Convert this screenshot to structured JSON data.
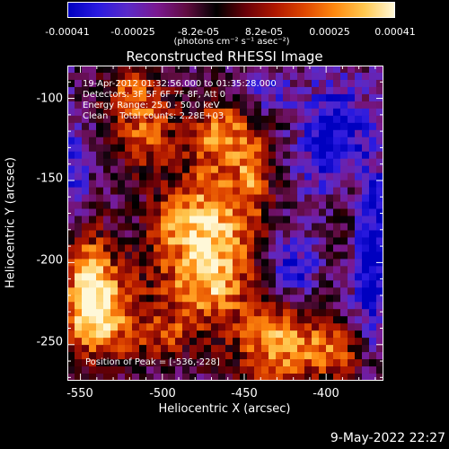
{
  "chart_data": {
    "type": "heatmap",
    "title": "Reconstructed RHESSI Image",
    "xlabel": "Heliocentric X (arcsec)",
    "ylabel": "Heliocentric Y (arcsec)",
    "xlim": [
      -558,
      -365
    ],
    "ylim": [
      -272,
      -80
    ],
    "x_ticks": [
      -550,
      -500,
      -450,
      -400
    ],
    "y_ticks": [
      -100,
      -150,
      -200,
      -250
    ],
    "colorbar": {
      "ticks": [
        "-0.00041",
        "-0.00025",
        "-8.2e-05",
        "8.2e-05",
        "0.00025",
        "0.00041"
      ],
      "unit": "(photons cm⁻² s⁻¹ asec⁻²)",
      "range": [
        -0.00041,
        0.00041
      ],
      "colormap": [
        "#0000c0",
        "#2a1ae0",
        "#5a2ac8",
        "#7a1890",
        "#600c40",
        "#000000",
        "#6a0008",
        "#b01800",
        "#e04800",
        "#ff8a10",
        "#ffc850",
        "#fff8d8"
      ]
    },
    "annotations": {
      "time": "19-Apr-2012 01:32:56.000 to 01:35:28.000",
      "detectors": "Detectors: 3F 5F 6F 7F 8F, Att 0",
      "energy": "Energy Range: 25.0 - 50.0 keV",
      "clean": "Clean    Total counts: 2.28E+03",
      "peak": "Position of Peak = [-536,-228]"
    },
    "bright_sources": [
      {
        "x": -470,
        "y": -175,
        "level": 1.0,
        "sx": 18,
        "sy": 26
      },
      {
        "x": -476,
        "y": -215,
        "level": 0.75,
        "sx": 22,
        "sy": 18
      },
      {
        "x": -465,
        "y": -120,
        "level": 0.85,
        "sx": 10,
        "sy": 14
      },
      {
        "x": -536,
        "y": -228,
        "level": 0.95,
        "sx": 14,
        "sy": 22
      },
      {
        "x": -548,
        "y": -210,
        "level": 0.75,
        "sx": 10,
        "sy": 28
      },
      {
        "x": -428,
        "y": -250,
        "level": 0.95,
        "sx": 20,
        "sy": 18
      },
      {
        "x": -445,
        "y": -140,
        "level": 0.65,
        "sx": 8,
        "sy": 22
      },
      {
        "x": -510,
        "y": -120,
        "level": 0.7,
        "sx": 14,
        "sy": 16
      },
      {
        "x": -520,
        "y": -95,
        "level": 0.55,
        "sx": 12,
        "sy": 10
      },
      {
        "x": -385,
        "y": -165,
        "level": 0.6,
        "sx": 12,
        "sy": 24
      },
      {
        "x": -392,
        "y": -255,
        "level": 0.55,
        "sx": 12,
        "sy": 12
      },
      {
        "x": -495,
        "y": -175,
        "level": 0.55,
        "sx": 10,
        "sy": 12
      },
      {
        "x": -500,
        "y": -245,
        "level": 0.5,
        "sx": 14,
        "sy": 10
      }
    ],
    "blue_regions": [
      {
        "x": -395,
        "y": -130,
        "level": -0.8,
        "sx": 14,
        "sy": 30
      },
      {
        "x": -372,
        "y": -190,
        "level": -0.9,
        "sx": 10,
        "sy": 40
      },
      {
        "x": -420,
        "y": -205,
        "level": -0.6,
        "sx": 12,
        "sy": 14
      },
      {
        "x": -555,
        "y": -150,
        "level": -0.5,
        "sx": 8,
        "sy": 30
      },
      {
        "x": -440,
        "y": -95,
        "level": -0.5,
        "sx": 12,
        "sy": 10
      }
    ]
  },
  "footer_date": "9-May-2022 22:27"
}
